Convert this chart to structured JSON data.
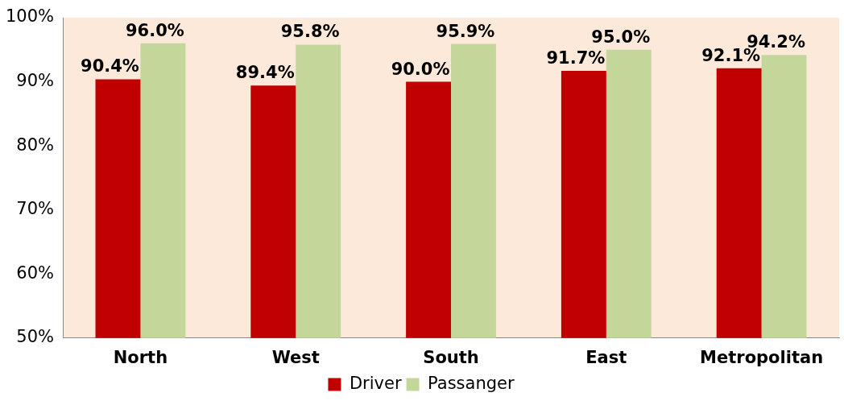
{
  "chart_data": {
    "type": "bar",
    "categories": [
      "North",
      "West",
      "South",
      "East",
      "Metropolitan"
    ],
    "series": [
      {
        "name": "Driver",
        "color": "#c00000",
        "values": [
          90.4,
          89.4,
          90.0,
          91.7,
          92.1
        ],
        "value_labels": [
          "90.4%",
          "89.4%",
          "90.0%",
          "91.7%",
          "92.1%"
        ]
      },
      {
        "name": "Passanger",
        "color": "#c4d79b",
        "values": [
          96.0,
          95.8,
          95.9,
          95.0,
          94.2
        ],
        "value_labels": [
          "96.0%",
          "95.8%",
          "95.9%",
          "95.0%",
          "94.2%"
        ]
      }
    ],
    "ylim": [
      50,
      100
    ],
    "yticks": [
      {
        "value": 50,
        "label": "50%"
      },
      {
        "value": 60,
        "label": "60%"
      },
      {
        "value": 70,
        "label": "70%"
      },
      {
        "value": 80,
        "label": "80%"
      },
      {
        "value": 90,
        "label": "90%"
      },
      {
        "value": 100,
        "label": "100%"
      }
    ],
    "grid": false,
    "legend": "bottom"
  }
}
